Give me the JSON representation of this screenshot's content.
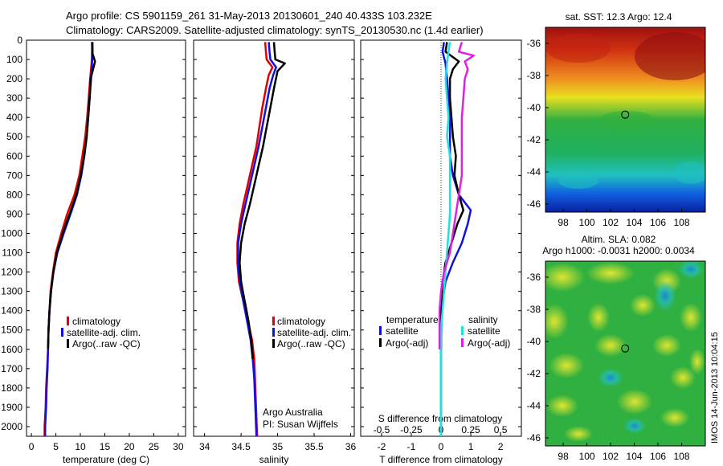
{
  "header": {
    "line1": "Argo profile: CS 5901159_261 31-May-2013 20130601_240 40.433S 103.232E",
    "line2": "Climatology: CARS2009. Satellite-adjusted climatology: synTS_20130530.nc (1.4d earlier)"
  },
  "colors": {
    "climatology": "#e00000",
    "satellite": "#1010e0",
    "argo": "#000000",
    "cyan": "#20e0e0",
    "magenta": "#e020e0"
  },
  "credit": {
    "line1": "Argo Australia",
    "line2": "PI: Susan Wijffels"
  },
  "stamp": "IMOS 14-Jun-2013 10:04:15",
  "chart_data": [
    {
      "type": "line",
      "panel": "temperature",
      "xlabel": "temperature (deg C)",
      "xlim": [
        -1,
        31.5
      ],
      "xticks": [
        "0",
        "5",
        "10",
        "15",
        "20",
        "25",
        "30"
      ],
      "ylim": [
        0,
        2050
      ],
      "yticks": [
        "0",
        "100",
        "200",
        "300",
        "400",
        "500",
        "600",
        "700",
        "800",
        "900",
        "1000",
        "1100",
        "1200",
        "1300",
        "1400",
        "1500",
        "1600",
        "1700",
        "1800",
        "1900",
        "2000"
      ],
      "y_inverted": true,
      "legend": [
        "climatology",
        "satellite-adj. clim.",
        "Argo(..raw -QC)"
      ],
      "series": [
        {
          "name": "climatology",
          "color": "#e00000",
          "points": [
            [
              12.4,
              10
            ],
            [
              12.4,
              60
            ],
            [
              12.3,
              120
            ],
            [
              12.0,
              200
            ],
            [
              11.7,
              300
            ],
            [
              11.4,
              400
            ],
            [
              11.0,
              500
            ],
            [
              10.4,
              600
            ],
            [
              9.8,
              700
            ],
            [
              8.8,
              800
            ],
            [
              7.3,
              900
            ],
            [
              6.1,
              1000
            ],
            [
              5.0,
              1100
            ],
            [
              4.4,
              1200
            ],
            [
              3.9,
              1300
            ],
            [
              3.7,
              1400
            ],
            [
              3.5,
              1500
            ],
            [
              3.4,
              1600
            ],
            [
              3.2,
              1700
            ],
            [
              3.0,
              1800
            ],
            [
              2.9,
              1900
            ],
            [
              2.7,
              2000
            ],
            [
              2.7,
              2050
            ]
          ]
        },
        {
          "name": "satellite-adj. clim.",
          "color": "#1010e0",
          "points": [
            [
              12.5,
              10
            ],
            [
              12.5,
              60
            ],
            [
              12.4,
              120
            ],
            [
              12.2,
              200
            ],
            [
              11.9,
              300
            ],
            [
              11.6,
              400
            ],
            [
              11.3,
              500
            ],
            [
              10.8,
              600
            ],
            [
              10.2,
              700
            ],
            [
              9.3,
              800
            ],
            [
              8.0,
              900
            ],
            [
              6.6,
              1000
            ],
            [
              5.3,
              1100
            ],
            [
              4.5,
              1200
            ],
            [
              4.0,
              1300
            ],
            [
              3.7,
              1400
            ],
            [
              3.5,
              1500
            ],
            [
              3.4,
              1600
            ],
            [
              3.3,
              1700
            ],
            [
              3.1,
              1800
            ],
            [
              3.0,
              1900
            ],
            [
              2.8,
              2000
            ],
            [
              2.8,
              2050
            ]
          ]
        },
        {
          "name": "Argo(..raw -QC)",
          "color": "#000000",
          "points": [
            [
              12.4,
              10
            ],
            [
              12.5,
              70
            ],
            [
              13.0,
              110
            ],
            [
              12.7,
              140
            ],
            [
              12.1,
              200
            ],
            [
              11.9,
              300
            ],
            [
              11.6,
              400
            ],
            [
              11.3,
              500
            ],
            [
              10.8,
              600
            ],
            [
              10.1,
              700
            ],
            [
              9.2,
              800
            ],
            [
              7.8,
              900
            ],
            [
              6.4,
              1000
            ],
            [
              5.2,
              1100
            ],
            [
              4.5,
              1200
            ],
            [
              4.0,
              1300
            ],
            [
              3.7,
              1400
            ],
            [
              3.5,
              1500
            ],
            [
              3.4,
              1600
            ]
          ]
        }
      ]
    },
    {
      "type": "line",
      "panel": "salinity",
      "xlabel": "salinity",
      "xlim": [
        33.85,
        36.05
      ],
      "xticks": [
        "34",
        "34.5",
        "35",
        "35.5",
        "36"
      ],
      "ylim": [
        0,
        2050
      ],
      "y_inverted": true,
      "legend": [
        "climatology",
        "satellite-adj. clim.",
        "Argo(..raw -QC)"
      ],
      "series": [
        {
          "name": "climatology",
          "color": "#e00000",
          "points": [
            [
              34.83,
              10
            ],
            [
              34.84,
              60
            ],
            [
              34.85,
              100
            ],
            [
              34.93,
              140
            ],
            [
              34.88,
              180
            ],
            [
              34.84,
              250
            ],
            [
              34.79,
              350
            ],
            [
              34.75,
              450
            ],
            [
              34.71,
              550
            ],
            [
              34.65,
              650
            ],
            [
              34.59,
              750
            ],
            [
              34.53,
              850
            ],
            [
              34.48,
              950
            ],
            [
              34.45,
              1050
            ],
            [
              34.45,
              1150
            ],
            [
              34.47,
              1250
            ],
            [
              34.53,
              1350
            ],
            [
              34.59,
              1450
            ],
            [
              34.65,
              1550
            ],
            [
              34.68,
              1650
            ],
            [
              34.69,
              1750
            ],
            [
              34.7,
              1850
            ],
            [
              34.71,
              1950
            ],
            [
              34.72,
              2050
            ]
          ]
        },
        {
          "name": "satellite-adj. clim.",
          "color": "#1010e0",
          "points": [
            [
              34.88,
              10
            ],
            [
              34.89,
              60
            ],
            [
              34.9,
              100
            ],
            [
              34.98,
              140
            ],
            [
              34.94,
              180
            ],
            [
              34.89,
              250
            ],
            [
              34.84,
              350
            ],
            [
              34.79,
              450
            ],
            [
              34.74,
              550
            ],
            [
              34.68,
              650
            ],
            [
              34.62,
              750
            ],
            [
              34.56,
              850
            ],
            [
              34.5,
              950
            ],
            [
              34.46,
              1050
            ],
            [
              34.46,
              1150
            ],
            [
              34.48,
              1250
            ],
            [
              34.53,
              1350
            ],
            [
              34.58,
              1450
            ],
            [
              34.63,
              1550
            ],
            [
              34.66,
              1650
            ],
            [
              34.68,
              1750
            ],
            [
              34.69,
              1850
            ],
            [
              34.7,
              1950
            ],
            [
              34.71,
              2050
            ]
          ]
        },
        {
          "name": "Argo(..raw -QC)",
          "color": "#000000",
          "points": [
            [
              34.95,
              10
            ],
            [
              34.96,
              60
            ],
            [
              34.97,
              100
            ],
            [
              35.1,
              120
            ],
            [
              35.0,
              160
            ],
            [
              34.95,
              250
            ],
            [
              34.9,
              350
            ],
            [
              34.85,
              450
            ],
            [
              34.8,
              550
            ],
            [
              34.74,
              650
            ],
            [
              34.68,
              750
            ],
            [
              34.62,
              850
            ],
            [
              34.55,
              950
            ],
            [
              34.5,
              1050
            ],
            [
              34.48,
              1150
            ],
            [
              34.5,
              1250
            ],
            [
              34.55,
              1350
            ],
            [
              34.6,
              1450
            ],
            [
              34.64,
              1550
            ],
            [
              34.66,
              1650
            ]
          ]
        }
      ],
      "annotations": [
        "Argo Australia",
        "PI: Susan Wijffels"
      ]
    },
    {
      "type": "line",
      "panel": "difference",
      "xlabel": "T difference from climatology",
      "top_label": "S difference from climatology",
      "xlim": [
        -2.7,
        2.7
      ],
      "xticks": [
        "-2",
        "-1",
        "0",
        "1",
        "2"
      ],
      "top_xticks": [
        "-0.5",
        "-0.25",
        "0",
        "0.25",
        "0.5"
      ],
      "ylim": [
        0,
        2050
      ],
      "y_inverted": true,
      "legend_groups": {
        "temperature": [
          "satellite",
          "Argo(-adj)"
        ],
        "salinity": [
          "satellite",
          "Argo(-adj)"
        ]
      },
      "series": [
        {
          "name": "satellite",
          "group": "temperature",
          "color": "#1010e0",
          "points": [
            [
              0.1,
              10
            ],
            [
              0.05,
              60
            ],
            [
              0.15,
              120
            ],
            [
              0.2,
              200
            ],
            [
              0.25,
              300
            ],
            [
              0.3,
              400
            ],
            [
              0.3,
              500
            ],
            [
              0.3,
              600
            ],
            [
              0.4,
              700
            ],
            [
              0.6,
              800
            ],
            [
              1.0,
              880
            ],
            [
              0.9,
              950
            ],
            [
              0.7,
              1050
            ],
            [
              0.4,
              1150
            ],
            [
              0.15,
              1250
            ],
            [
              0.05,
              1350
            ],
            [
              0.02,
              1450
            ],
            [
              0.0,
              1550
            ],
            [
              0.0,
              1700
            ],
            [
              0.0,
              1900
            ],
            [
              0.0,
              2050
            ]
          ]
        },
        {
          "name": "Argo(-adj)",
          "group": "temperature",
          "color": "#000000",
          "points": [
            [
              0.2,
              10
            ],
            [
              0.15,
              60
            ],
            [
              0.6,
              110
            ],
            [
              0.4,
              150
            ],
            [
              0.3,
              200
            ],
            [
              0.3,
              300
            ],
            [
              0.35,
              400
            ],
            [
              0.4,
              500
            ],
            [
              0.5,
              600
            ],
            [
              0.45,
              700
            ],
            [
              0.6,
              800
            ],
            [
              0.75,
              880
            ],
            [
              0.55,
              950
            ],
            [
              0.35,
              1050
            ],
            [
              0.15,
              1150
            ],
            [
              0.05,
              1250
            ],
            [
              0.02,
              1350
            ],
            [
              0.0,
              1450
            ],
            [
              0.0,
              1600
            ]
          ]
        },
        {
          "name": "satellite",
          "group": "salinity",
          "color": "#20e0e0",
          "points": [
            [
              0.3,
              10
            ],
            [
              0.25,
              60
            ],
            [
              0.2,
              120
            ],
            [
              0.15,
              200
            ],
            [
              0.2,
              300
            ],
            [
              0.25,
              400
            ],
            [
              0.2,
              500
            ],
            [
              0.3,
              600
            ],
            [
              0.3,
              700
            ],
            [
              0.3,
              800
            ],
            [
              0.3,
              900
            ],
            [
              0.25,
              1000
            ],
            [
              0.2,
              1100
            ],
            [
              0.15,
              1200
            ],
            [
              0.1,
              1300
            ],
            [
              0.05,
              1400
            ],
            [
              0.0,
              1500
            ],
            [
              0.0,
              1700
            ],
            [
              0.0,
              1900
            ],
            [
              0.0,
              2050
            ]
          ]
        },
        {
          "name": "Argo(-adj)",
          "group": "salinity",
          "color": "#e020e0",
          "points": [
            [
              0.7,
              10
            ],
            [
              0.6,
              60
            ],
            [
              1.1,
              80
            ],
            [
              0.8,
              110
            ],
            [
              0.9,
              150
            ],
            [
              0.8,
              200
            ],
            [
              0.75,
              300
            ],
            [
              0.7,
              400
            ],
            [
              0.7,
              500
            ],
            [
              0.7,
              600
            ],
            [
              0.7,
              700
            ],
            [
              0.6,
              800
            ],
            [
              0.5,
              900
            ],
            [
              0.4,
              1000
            ],
            [
              0.3,
              1100
            ],
            [
              0.1,
              1200
            ],
            [
              0.0,
              1300
            ],
            [
              -0.05,
              1400
            ],
            [
              -0.05,
              1500
            ],
            [
              -0.05,
              1600
            ]
          ]
        }
      ]
    },
    {
      "type": "heatmap",
      "panel": "sst-map",
      "title": "sat. SST: 12.3  Argo: 12.4",
      "xlim": [
        96.5,
        110
      ],
      "ylim": [
        -46.5,
        -35
      ],
      "xticks": [
        "98",
        "100",
        "102",
        "104",
        "106",
        "108"
      ],
      "yticks": [
        "-36",
        "-38",
        "-40",
        "-42",
        "-44",
        "-46"
      ],
      "marker": {
        "lon": 103.232,
        "lat": -40.433
      }
    },
    {
      "type": "heatmap",
      "panel": "sla-map",
      "title_line1": "Altim. SLA: 0.082",
      "title_line2": "Argo h1000: -0.0031  h2000: 0.0034",
      "xlim": [
        96.5,
        110
      ],
      "ylim": [
        -46.5,
        -35
      ],
      "xticks": [
        "98",
        "100",
        "102",
        "104",
        "106",
        "108"
      ],
      "yticks": [
        "-36",
        "-38",
        "-40",
        "-42",
        "-44",
        "-46"
      ],
      "marker": {
        "lon": 103.232,
        "lat": -40.433
      }
    }
  ]
}
